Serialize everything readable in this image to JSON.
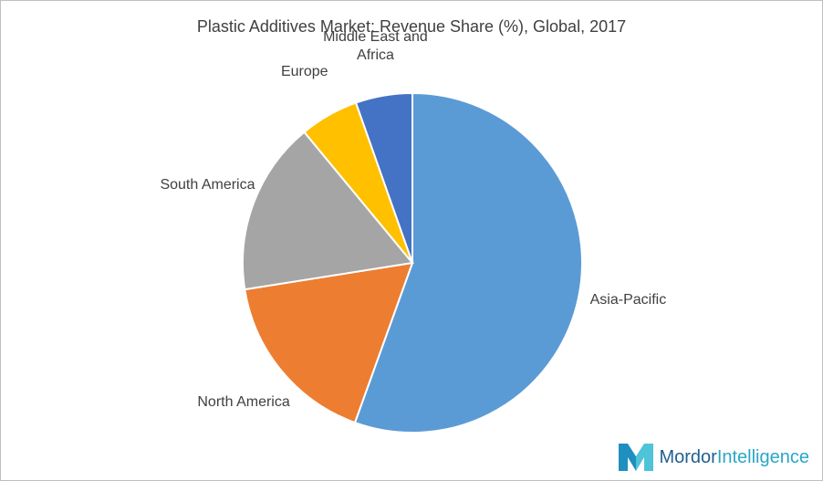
{
  "chart_data": {
    "type": "pie",
    "title": "Plastic Additives Market: Revenue Share (%), Global, 2017",
    "categories": [
      "Asia-Pacific",
      "North America",
      "South America",
      "Europe",
      "Middle East and Africa"
    ],
    "values": [
      55.5,
      17,
      16.5,
      5.6,
      5.4
    ],
    "colors": [
      "#5b9bd5",
      "#ed7d31",
      "#a5a5a5",
      "#ffc000",
      "#4472c4"
    ]
  },
  "logo": {
    "brand": "Mordor",
    "suffix": "Intelligence"
  }
}
